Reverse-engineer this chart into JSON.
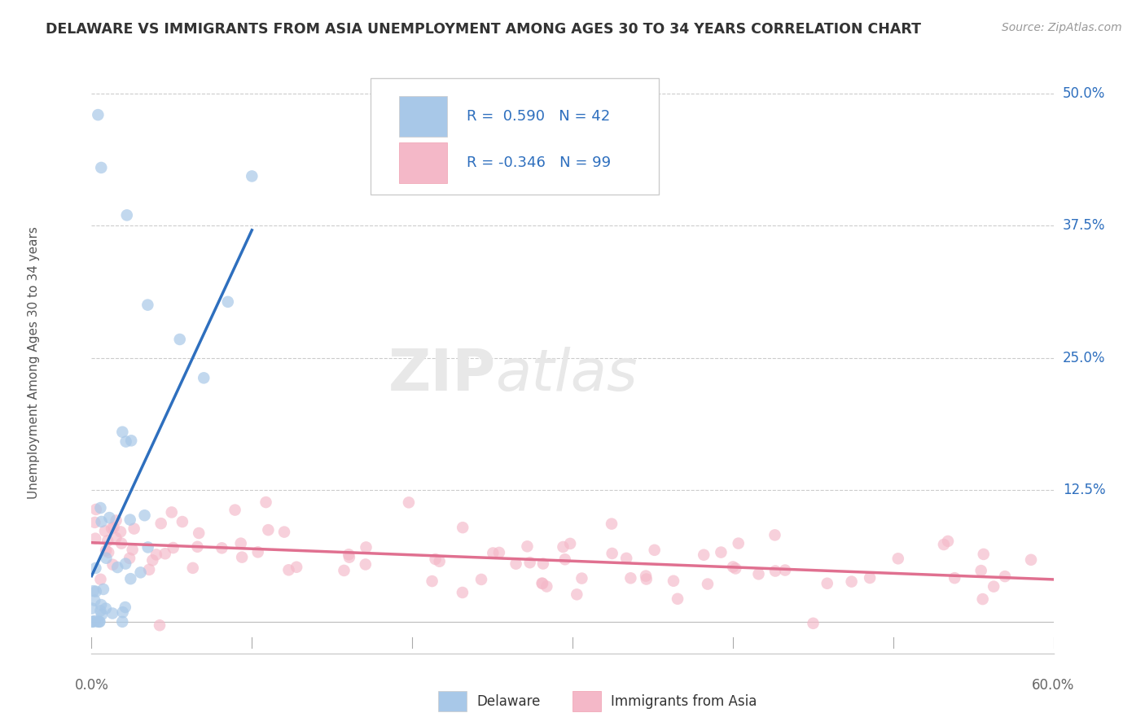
{
  "title": "DELAWARE VS IMMIGRANTS FROM ASIA UNEMPLOYMENT AMONG AGES 30 TO 34 YEARS CORRELATION CHART",
  "source": "Source: ZipAtlas.com",
  "ylabel": "Unemployment Among Ages 30 to 34 years",
  "ytick_labels": [
    "12.5%",
    "25.0%",
    "37.5%",
    "50.0%"
  ],
  "ytick_values": [
    12.5,
    25.0,
    37.5,
    50.0
  ],
  "legend_label1": "Delaware",
  "legend_label2": "Immigrants from Asia",
  "R1": "0.590",
  "N1": "42",
  "R2": "-0.346",
  "N2": "99",
  "blue_color": "#a8c8e8",
  "pink_color": "#f4b8c8",
  "blue_line_color": "#2e6fbe",
  "pink_line_color": "#e07090",
  "watermark_zip": "ZIP",
  "watermark_atlas": "atlas",
  "xmin": 0.0,
  "xmax": 60.0,
  "ymin": -3.0,
  "ymax": 52.0
}
